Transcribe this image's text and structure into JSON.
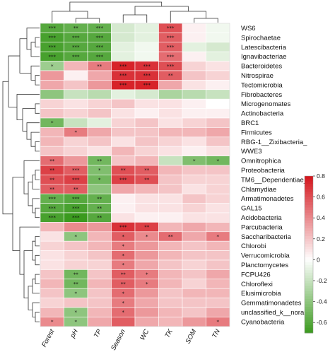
{
  "chart_data": {
    "type": "heatmap",
    "rows": [
      "WS6",
      "Spirochaetae",
      "Latescibacteria",
      "Ignavibacteriae",
      "Bacteroidetes",
      "Nitrospirae",
      "Tectomicrobia",
      "Fibrobacteres",
      "Microgenomates",
      "Actinobacteria",
      "BRC1",
      "Firmicutes",
      "RBG-1__Zixibacteria_",
      "WWE3",
      "Omnitrophica",
      "Proteobacteria",
      "TM6__Dependentiae_",
      "Chlamydiae",
      "Armatimonadetes",
      "GAL15",
      "Acidobacteria",
      "Parcubacteria",
      "Saccharibacteria",
      "Chlorobi",
      "Verrucomicrobia",
      "Planctomycetes",
      "FCPU426",
      "Chloroflexi",
      "Elusimicrobia",
      "Gemmatimonadetes",
      "unclassified_k__norank",
      "Cyanobacteria"
    ],
    "columns": [
      "Forest",
      "pH",
      "TP",
      "Season",
      "WC",
      "TK",
      "SOM",
      "TN"
    ],
    "values": [
      [
        -0.6,
        -0.55,
        -0.55,
        -0.15,
        -0.1,
        0.6,
        0.05,
        -0.05
      ],
      [
        -0.65,
        -0.6,
        -0.6,
        -0.15,
        -0.1,
        0.55,
        0.05,
        -0.05
      ],
      [
        -0.65,
        -0.6,
        -0.6,
        -0.1,
        -0.05,
        0.55,
        -0.1,
        -0.15
      ],
      [
        -0.65,
        -0.6,
        -0.6,
        -0.1,
        -0.05,
        0.5,
        0.05,
        -0.1
      ],
      [
        -0.35,
        0.25,
        0.45,
        0.75,
        0.7,
        0.6,
        0.15,
        0.1
      ],
      [
        0.35,
        0.05,
        0.3,
        0.7,
        0.7,
        0.55,
        0.2,
        0.15
      ],
      [
        0.3,
        0.2,
        0.35,
        0.75,
        0.75,
        0.3,
        0.1,
        0.05
      ],
      [
        -0.4,
        -0.2,
        -0.25,
        -0.1,
        -0.15,
        -0.3,
        -0.25,
        -0.2
      ],
      [
        0.15,
        0.1,
        0.15,
        0.2,
        0.1,
        0.1,
        0.05,
        0.0
      ],
      [
        0.2,
        0.15,
        0.2,
        0.1,
        0.05,
        0.1,
        0.05,
        0.05
      ],
      [
        -0.5,
        -0.2,
        -0.1,
        0.15,
        0.2,
        0.1,
        0.15,
        0.2
      ],
      [
        0.25,
        0.45,
        0.3,
        0.2,
        0.2,
        0.25,
        0.25,
        0.3
      ],
      [
        0.25,
        0.15,
        0.2,
        0.1,
        0.2,
        0.15,
        0.1,
        0.2
      ],
      [
        0.2,
        0.15,
        0.1,
        0.25,
        0.15,
        0.1,
        0.05,
        0.1
      ],
      [
        0.5,
        0.35,
        -0.5,
        0.2,
        0.25,
        -0.2,
        -0.45,
        -0.5
      ],
      [
        0.65,
        0.55,
        -0.45,
        0.6,
        0.55,
        0.25,
        0.2,
        0.2
      ],
      [
        0.6,
        0.65,
        -0.5,
        0.65,
        0.6,
        0.2,
        0.15,
        0.15
      ],
      [
        0.55,
        0.55,
        -0.4,
        0.3,
        0.25,
        0.2,
        0.1,
        0.15
      ],
      [
        -0.55,
        -0.6,
        -0.55,
        0.05,
        0.1,
        0.1,
        0.2,
        0.15
      ],
      [
        -0.6,
        -0.65,
        -0.55,
        0.05,
        0.1,
        0.1,
        0.15,
        0.1
      ],
      [
        -0.65,
        -0.7,
        -0.6,
        0.1,
        0.05,
        0.05,
        0.1,
        0.1
      ],
      [
        0.25,
        0.4,
        0.35,
        0.7,
        0.65,
        0.25,
        0.3,
        0.25
      ],
      [
        0.1,
        -0.4,
        0.25,
        0.55,
        0.4,
        0.5,
        0.3,
        0.45
      ],
      [
        0.15,
        0.2,
        0.25,
        0.45,
        0.35,
        0.25,
        0.2,
        0.25
      ],
      [
        0.1,
        0.15,
        0.2,
        0.5,
        0.35,
        0.25,
        0.2,
        0.2
      ],
      [
        0.1,
        0.15,
        0.15,
        0.45,
        0.3,
        0.2,
        0.15,
        0.2
      ],
      [
        0.2,
        -0.5,
        0.2,
        0.55,
        0.45,
        0.25,
        0.2,
        0.3
      ],
      [
        0.25,
        -0.5,
        0.25,
        0.55,
        0.45,
        0.25,
        0.15,
        0.25
      ],
      [
        0.2,
        -0.4,
        0.2,
        0.5,
        0.35,
        0.2,
        0.25,
        0.25
      ],
      [
        0.15,
        0.2,
        0.2,
        0.45,
        0.3,
        0.2,
        0.2,
        0.2
      ],
      [
        0.25,
        -0.4,
        0.25,
        0.5,
        0.35,
        0.25,
        0.2,
        0.3
      ],
      [
        0.4,
        -0.4,
        0.3,
        0.55,
        0.3,
        0.25,
        0.35,
        0.45
      ]
    ],
    "significance": [
      [
        "***",
        "**",
        "***",
        "",
        "",
        "***",
        "",
        ""
      ],
      [
        "***",
        "***",
        "***",
        "",
        "",
        "***",
        "",
        ""
      ],
      [
        "***",
        "***",
        "***",
        "",
        "",
        "***",
        "",
        ""
      ],
      [
        "***",
        "***",
        "***",
        "",
        "",
        "***",
        "",
        ""
      ],
      [
        "*",
        "",
        "**",
        "***",
        "***",
        "***",
        "",
        ""
      ],
      [
        "",
        "",
        "",
        "***",
        "***",
        "**",
        "",
        ""
      ],
      [
        "",
        "",
        "",
        "***",
        "***",
        "",
        "",
        ""
      ],
      [
        "",
        "",
        "",
        "",
        "",
        "",
        "",
        ""
      ],
      [
        "",
        "",
        "",
        "",
        "",
        "",
        "",
        ""
      ],
      [
        "",
        "",
        "",
        "",
        "",
        "",
        "",
        ""
      ],
      [
        "*",
        "",
        "",
        "",
        "",
        "",
        "",
        ""
      ],
      [
        "",
        "*",
        "",
        "",
        "",
        "",
        "",
        ""
      ],
      [
        "",
        "",
        "",
        "",
        "",
        "",
        "",
        ""
      ],
      [
        "",
        "",
        "",
        "",
        "",
        "",
        "",
        ""
      ],
      [
        "**",
        "",
        "**",
        "",
        "",
        "",
        "*",
        "*"
      ],
      [
        "**",
        "***",
        "*",
        "**",
        "**",
        "",
        "",
        ""
      ],
      [
        "**",
        "***",
        "*",
        "***",
        "**",
        "",
        "",
        ""
      ],
      [
        "**",
        "**",
        "",
        "",
        "",
        "",
        "",
        ""
      ],
      [
        "***",
        "***",
        "**",
        "",
        "",
        "",
        "",
        ""
      ],
      [
        "***",
        "***",
        "**",
        "",
        "",
        "",
        "",
        ""
      ],
      [
        "***",
        "***",
        "**",
        "",
        "",
        "",
        "",
        ""
      ],
      [
        "",
        "",
        "",
        "***",
        "**",
        "",
        "",
        ""
      ],
      [
        "",
        "*",
        "",
        "*",
        "*",
        "**",
        "",
        "*"
      ],
      [
        "",
        "",
        "",
        "*",
        "",
        "",
        "",
        ""
      ],
      [
        "",
        "",
        "",
        "*",
        "",
        "",
        "",
        ""
      ],
      [
        "",
        "",
        "",
        "*",
        "",
        "",
        "",
        ""
      ],
      [
        "",
        "**",
        "",
        "**",
        "*",
        "",
        "",
        ""
      ],
      [
        "",
        "**",
        "",
        "**",
        "*",
        "",
        "",
        ""
      ],
      [
        "",
        "*",
        "",
        "*",
        "",
        "",
        "",
        ""
      ],
      [
        "",
        "",
        "",
        "*",
        "",
        "",
        "",
        ""
      ],
      [
        "",
        "*",
        "",
        "*",
        "",
        "",
        "",
        ""
      ],
      [
        "*",
        "*",
        "",
        "",
        "",
        "",
        "",
        "*"
      ]
    ],
    "colorbar": {
      "ticks": [
        0.8,
        0.6,
        0.4,
        0.2,
        0,
        -0.2,
        -0.4,
        -0.6
      ],
      "tick_labels": [
        "0.8",
        "0.6",
        "0.4",
        "0.2",
        "0",
        "-0.2",
        "-0.4",
        "-0.6"
      ],
      "range": [
        -0.7,
        0.8
      ]
    },
    "colors": {
      "low": "#3a9a1e",
      "mid": "#ffffff",
      "high": "#d4141b",
      "tree": "#333333"
    }
  }
}
